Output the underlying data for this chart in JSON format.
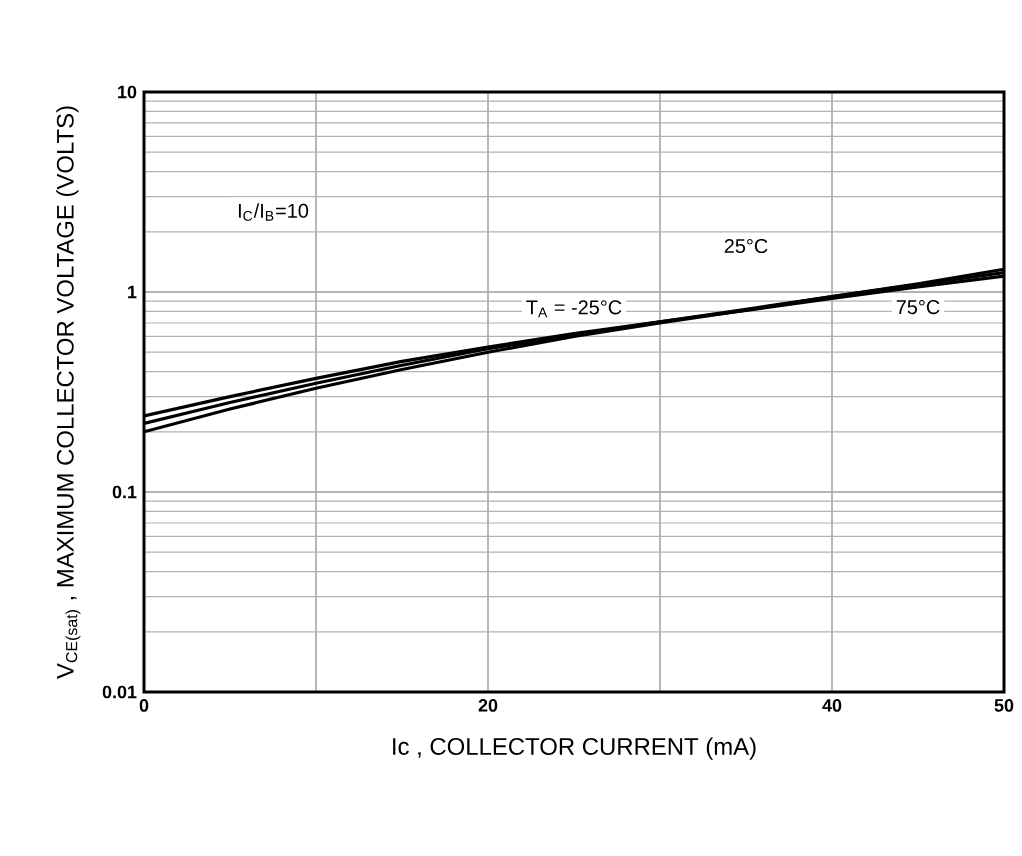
{
  "chart_data": {
    "type": "line",
    "xlabel": "Ic , COLLECTOR CURRENT (mA)",
    "ylabel": "V$_{CE(sat)}$ , MAXIMUM COLLECTOR VOLTAGE (VOLTS)",
    "annotations": [
      "I$_{C}$/I$_{B}$=10"
    ],
    "x": [
      0,
      5,
      10,
      15,
      20,
      25,
      30,
      35,
      40,
      45,
      50
    ],
    "series": [
      {
        "name": "T$_{A}$ = -25°C",
        "color": "#000000",
        "values": [
          0.24,
          0.3,
          0.37,
          0.45,
          0.53,
          0.62,
          0.71,
          0.81,
          0.93,
          1.06,
          1.2
        ]
      },
      {
        "name": "25°C",
        "color": "#000000",
        "values": [
          0.22,
          0.28,
          0.35,
          0.43,
          0.52,
          0.61,
          0.71,
          0.82,
          0.95,
          1.09,
          1.25
        ]
      },
      {
        "name": "75°C",
        "color": "#000000",
        "values": [
          0.2,
          0.26,
          0.33,
          0.41,
          0.5,
          0.6,
          0.7,
          0.81,
          0.95,
          1.1,
          1.3
        ]
      }
    ],
    "xlim": [
      0,
      50
    ],
    "xticks": [
      0,
      {
        "value": 10,
        "label": null
      },
      20,
      {
        "value": 30,
        "label": null
      },
      40,
      50
    ],
    "ylim": [
      0.01,
      10
    ],
    "yticks": [
      0.01,
      0.1,
      1,
      10
    ],
    "log": true,
    "grid": true,
    "marker": "none",
    "line_style": "solid"
  }
}
